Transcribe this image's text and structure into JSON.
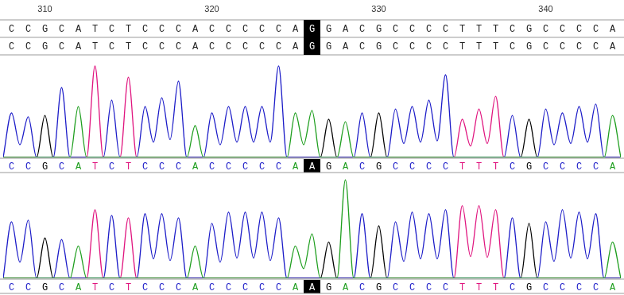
{
  "ruler": {
    "xlim": [
      307.5,
      344.5
    ],
    "xticks": [
      310,
      320,
      330,
      340
    ]
  },
  "reference_rows": [
    "CCGCATCTCCCACCCCCAGGACGCCCCTTTCGCCCCA",
    "CCGCATCTCCCACCCCCAGGACGCCCCTTTCGCCCCA"
  ],
  "first_position": 308,
  "highlight_position": 326,
  "chart_data": [
    {
      "type": "line",
      "tick_labels": false,
      "grid": false,
      "xlim": [
        307.5,
        344.5
      ],
      "ylim": [
        0,
        80
      ],
      "base_calls": "CCGCATCTCCCACCCCCAAGACGCCCCTTTCGCCCCA",
      "x": [
        307.5,
        308,
        308.5,
        309,
        309.5,
        310,
        310.5,
        311,
        311.5,
        312,
        312.5,
        313,
        313.5,
        314,
        314.5,
        315,
        315.5,
        316,
        316.5,
        317,
        317.5,
        318,
        318.5,
        319,
        319.5,
        320,
        320.5,
        321,
        321.5,
        322,
        322.5,
        323,
        323.5,
        324,
        324.5,
        325,
        325.5,
        326,
        326.5,
        327,
        327.5,
        328,
        328.5,
        329,
        329.5,
        330,
        330.5,
        331,
        331.5,
        332,
        332.5,
        333,
        333.5,
        334,
        334.5,
        335,
        335.5,
        336,
        336.5,
        337,
        337.5,
        338,
        338.5,
        339,
        339.5,
        340,
        340.5,
        341,
        341.5,
        342,
        342.5,
        343,
        343.5,
        344,
        344.5
      ],
      "series": [
        {
          "name": "A",
          "color": "#1e9e1e",
          "values": [
            0,
            0,
            0,
            0,
            0,
            0,
            0,
            0,
            0,
            40,
            0,
            0,
            0,
            0,
            0,
            0,
            0,
            0,
            0,
            0,
            0,
            0,
            0,
            25,
            0,
            0,
            0,
            0,
            0,
            0,
            0,
            0,
            0,
            0,
            0,
            35,
            10,
            37,
            0,
            0,
            0,
            28,
            0,
            0,
            0,
            0,
            0,
            0,
            0,
            0,
            0,
            0,
            0,
            0,
            0,
            0,
            0,
            0,
            0,
            0,
            0,
            0,
            0,
            0,
            0,
            0,
            0,
            0,
            0,
            0,
            0,
            0,
            0,
            33,
            0
          ]
        },
        {
          "name": "C",
          "color": "#1c1cc8",
          "values": [
            0,
            35,
            10,
            32,
            0,
            0,
            0,
            55,
            0,
            0,
            0,
            0,
            0,
            45,
            0,
            0,
            0,
            40,
            12,
            47,
            14,
            60,
            0,
            0,
            0,
            35,
            10,
            40,
            12,
            40,
            12,
            40,
            12,
            72,
            0,
            0,
            0,
            0,
            0,
            0,
            0,
            0,
            0,
            35,
            0,
            0,
            0,
            38,
            11,
            40,
            12,
            45,
            13,
            65,
            0,
            0,
            0,
            0,
            0,
            0,
            0,
            33,
            0,
            0,
            0,
            38,
            10,
            35,
            11,
            40,
            12,
            42,
            0,
            0,
            0
          ]
        },
        {
          "name": "G",
          "color": "#000000",
          "values": [
            0,
            0,
            0,
            0,
            0,
            33,
            0,
            0,
            0,
            0,
            0,
            0,
            0,
            0,
            0,
            0,
            0,
            0,
            0,
            0,
            0,
            0,
            0,
            0,
            0,
            0,
            0,
            0,
            0,
            0,
            0,
            0,
            0,
            0,
            0,
            0,
            0,
            0,
            0,
            30,
            0,
            0,
            0,
            0,
            0,
            35,
            0,
            0,
            0,
            0,
            0,
            0,
            0,
            0,
            0,
            0,
            0,
            0,
            0,
            0,
            0,
            0,
            0,
            30,
            0,
            0,
            0,
            0,
            0,
            0,
            0,
            0,
            0,
            0,
            0
          ]
        },
        {
          "name": "T",
          "color": "#e0157f",
          "values": [
            0,
            0,
            0,
            0,
            0,
            0,
            0,
            0,
            0,
            0,
            0,
            72,
            0,
            0,
            0,
            63,
            0,
            0,
            0,
            0,
            0,
            0,
            0,
            0,
            0,
            0,
            0,
            0,
            0,
            0,
            0,
            0,
            0,
            0,
            0,
            0,
            0,
            0,
            0,
            0,
            0,
            0,
            0,
            0,
            0,
            0,
            0,
            0,
            0,
            0,
            0,
            0,
            0,
            0,
            0,
            30,
            9,
            38,
            11,
            48,
            0,
            0,
            0,
            0,
            0,
            0,
            0,
            0,
            0,
            0,
            0,
            0,
            0,
            0,
            0
          ]
        }
      ]
    },
    {
      "type": "line",
      "tick_labels": false,
      "grid": false,
      "xlim": [
        307.5,
        344.5
      ],
      "ylim": [
        0,
        130
      ],
      "base_calls": "CCGCATCTCCCACCCCCAAGACGCCCCTTTCGCCCCA",
      "x": [
        307.5,
        308,
        308.5,
        309,
        309.5,
        310,
        310.5,
        311,
        311.5,
        312,
        312.5,
        313,
        313.5,
        314,
        314.5,
        315,
        315.5,
        316,
        316.5,
        317,
        317.5,
        318,
        318.5,
        319,
        319.5,
        320,
        320.5,
        321,
        321.5,
        322,
        322.5,
        323,
        323.5,
        324,
        324.5,
        325,
        325.5,
        326,
        326.5,
        327,
        327.5,
        328,
        328.5,
        329,
        329.5,
        330,
        330.5,
        331,
        331.5,
        332,
        332.5,
        333,
        333.5,
        334,
        334.5,
        335,
        335.5,
        336,
        336.5,
        337,
        337.5,
        338,
        338.5,
        339,
        339.5,
        340,
        340.5,
        341,
        341.5,
        342,
        342.5,
        343,
        343.5,
        344,
        344.5
      ],
      "series": [
        {
          "name": "A",
          "color": "#1e9e1e",
          "values": [
            0,
            0,
            0,
            0,
            0,
            0,
            0,
            0,
            0,
            40,
            0,
            0,
            0,
            0,
            0,
            0,
            0,
            0,
            0,
            0,
            0,
            0,
            0,
            40,
            0,
            0,
            0,
            0,
            0,
            0,
            0,
            0,
            0,
            0,
            0,
            40,
            12,
            55,
            0,
            0,
            0,
            122,
            0,
            0,
            0,
            0,
            0,
            0,
            0,
            0,
            0,
            0,
            0,
            0,
            0,
            0,
            0,
            0,
            0,
            0,
            0,
            0,
            0,
            0,
            0,
            0,
            0,
            0,
            0,
            0,
            0,
            0,
            0,
            45,
            0
          ]
        },
        {
          "name": "C",
          "color": "#1c1cc8",
          "values": [
            0,
            70,
            20,
            72,
            0,
            0,
            0,
            48,
            0,
            0,
            0,
            0,
            0,
            78,
            0,
            0,
            0,
            80,
            24,
            80,
            22,
            75,
            0,
            0,
            0,
            68,
            20,
            82,
            25,
            82,
            25,
            82,
            22,
            75,
            0,
            0,
            0,
            0,
            0,
            0,
            0,
            0,
            0,
            80,
            0,
            0,
            0,
            70,
            21,
            82,
            24,
            80,
            24,
            85,
            0,
            0,
            0,
            0,
            0,
            0,
            0,
            75,
            0,
            0,
            0,
            70,
            21,
            85,
            25,
            82,
            24,
            80,
            0,
            0,
            0
          ]
        },
        {
          "name": "G",
          "color": "#000000",
          "values": [
            0,
            0,
            0,
            0,
            0,
            50,
            0,
            0,
            0,
            0,
            0,
            0,
            0,
            0,
            0,
            0,
            0,
            0,
            0,
            0,
            0,
            0,
            0,
            0,
            0,
            0,
            0,
            0,
            0,
            0,
            0,
            0,
            0,
            0,
            0,
            0,
            0,
            0,
            0,
            45,
            0,
            0,
            0,
            0,
            0,
            65,
            0,
            0,
            0,
            0,
            0,
            0,
            0,
            0,
            0,
            0,
            0,
            0,
            0,
            0,
            0,
            0,
            0,
            68,
            0,
            0,
            0,
            0,
            0,
            0,
            0,
            0,
            0,
            0,
            0
          ]
        },
        {
          "name": "T",
          "color": "#e0157f",
          "values": [
            0,
            0,
            0,
            0,
            0,
            0,
            0,
            0,
            0,
            0,
            0,
            85,
            0,
            0,
            0,
            75,
            0,
            0,
            0,
            0,
            0,
            0,
            0,
            0,
            0,
            0,
            0,
            0,
            0,
            0,
            0,
            0,
            0,
            0,
            0,
            0,
            0,
            0,
            0,
            0,
            0,
            0,
            0,
            0,
            0,
            0,
            0,
            0,
            0,
            0,
            0,
            0,
            0,
            0,
            0,
            90,
            27,
            90,
            26,
            85,
            0,
            0,
            0,
            0,
            0,
            0,
            0,
            0,
            0,
            0,
            0,
            0,
            0,
            0,
            0
          ]
        }
      ]
    }
  ]
}
